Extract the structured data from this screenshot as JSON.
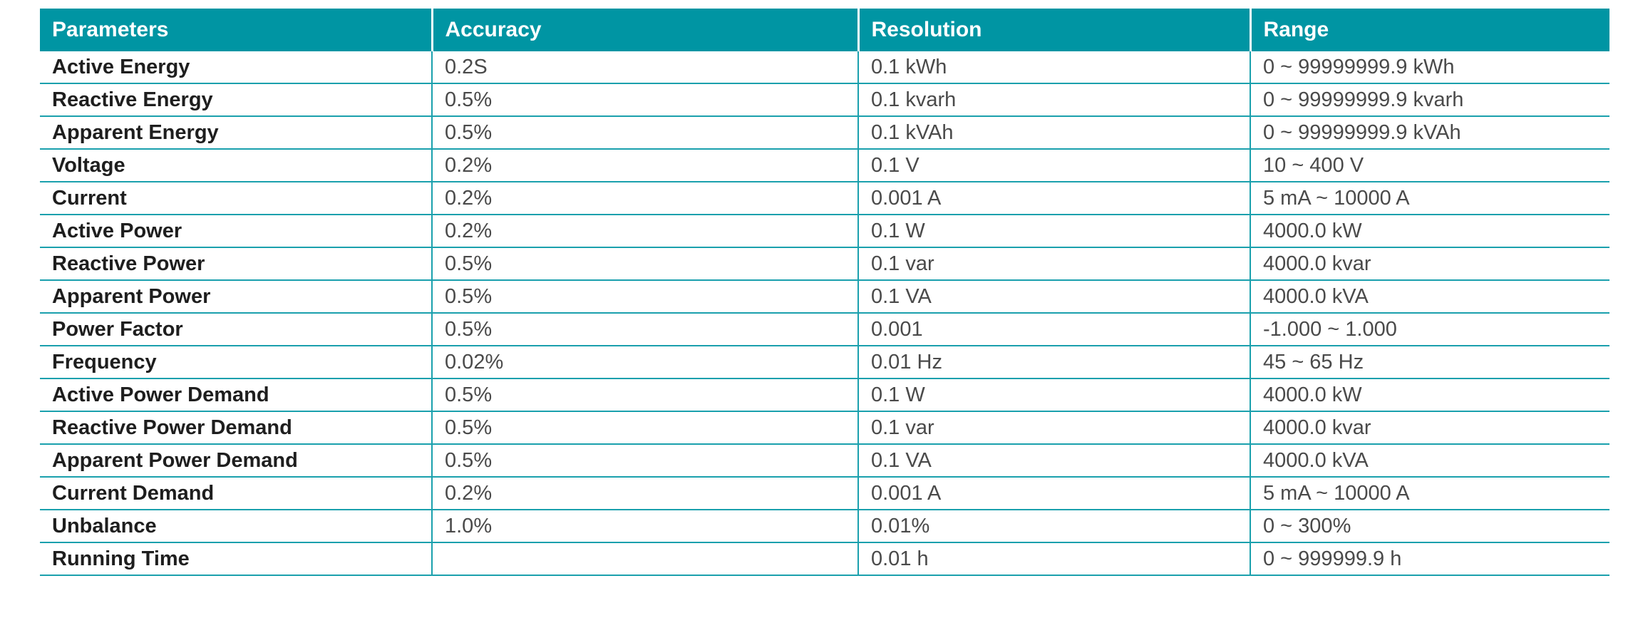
{
  "table": {
    "headers": [
      "Parameters",
      "Accuracy",
      "Resolution",
      "Range"
    ],
    "rows": [
      [
        "Active Energy",
        "0.2S",
        "0.1 kWh",
        "0 ~ 99999999.9 kWh"
      ],
      [
        "Reactive Energy",
        "0.5%",
        "0.1 kvarh",
        "0 ~ 99999999.9 kvarh"
      ],
      [
        "Apparent Energy",
        "0.5%",
        "0.1 kVAh",
        "0 ~ 99999999.9 kVAh"
      ],
      [
        "Voltage",
        "0.2%",
        "0.1 V",
        "10 ~ 400 V"
      ],
      [
        "Current",
        "0.2%",
        "0.001 A",
        "5 mA ~ 10000 A"
      ],
      [
        "Active Power",
        "0.2%",
        "0.1 W",
        "4000.0 kW"
      ],
      [
        "Reactive Power",
        "0.5%",
        "0.1 var",
        "4000.0 kvar"
      ],
      [
        "Apparent Power",
        "0.5%",
        "0.1 VA",
        "4000.0 kVA"
      ],
      [
        "Power Factor",
        "0.5%",
        "0.001",
        "-1.000 ~ 1.000"
      ],
      [
        "Frequency",
        "0.02%",
        "0.01 Hz",
        "45 ~ 65 Hz"
      ],
      [
        "Active Power Demand",
        "0.5%",
        "0.1 W",
        "4000.0 kW"
      ],
      [
        "Reactive Power Demand",
        "0.5%",
        "0.1 var",
        "4000.0 kvar"
      ],
      [
        "Apparent Power Demand",
        "0.5%",
        "0.1 VA",
        "4000.0 kVA"
      ],
      [
        "Current Demand",
        "0.2%",
        "0.001 A",
        "5 mA ~ 10000 A"
      ],
      [
        "Unbalance",
        "1.0%",
        "0.01%",
        "0 ~ 300%"
      ],
      [
        "Running Time",
        "",
        "0.01 h",
        "0 ~ 999999.9 h"
      ]
    ]
  },
  "colors": {
    "header_bg": "#0095a3",
    "header_text": "#ffffff",
    "rule": "#1aa0ad"
  }
}
